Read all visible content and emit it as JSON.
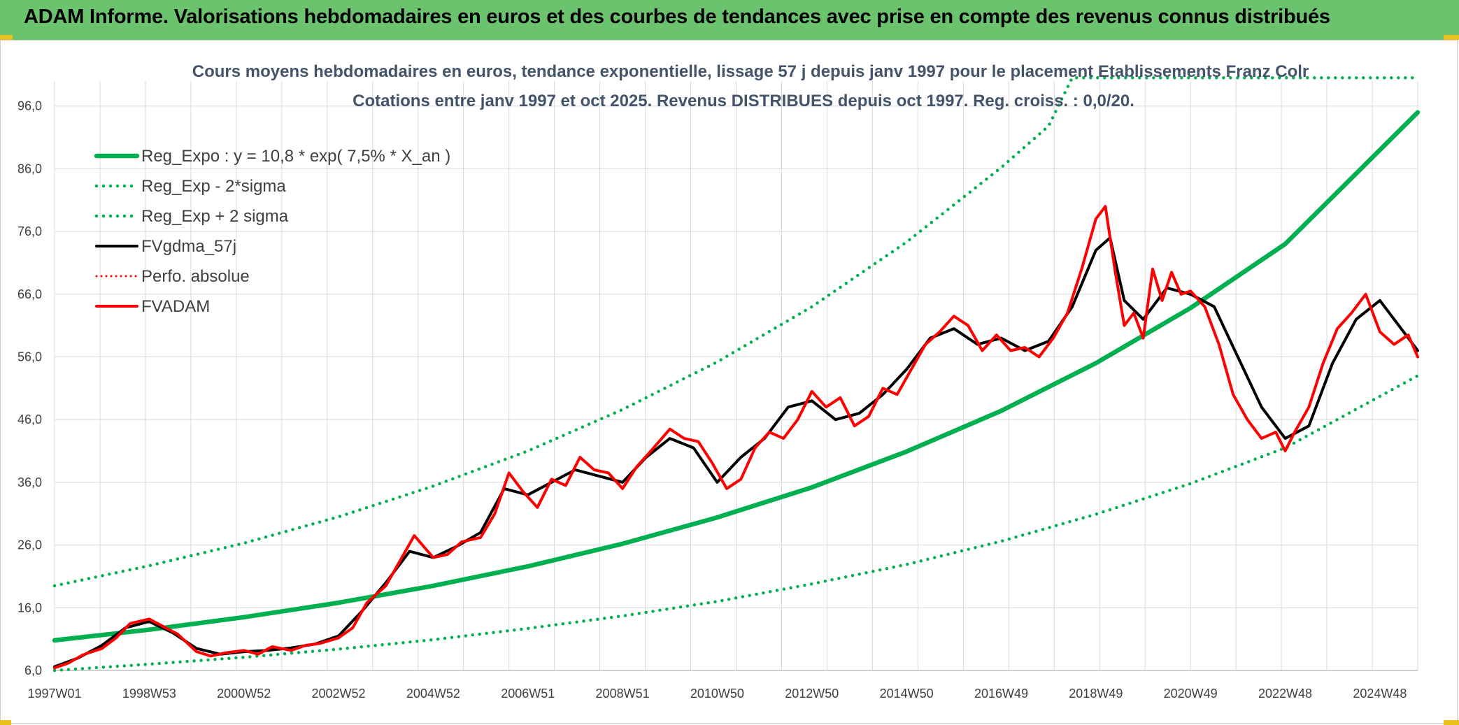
{
  "header": {
    "title": "ADAM Informe. Valorisations hebdomadaires en euros et des courbes de tendances avec prise en compte des revenus connus distribués"
  },
  "chart_data": {
    "type": "line",
    "title": "Cours moyens hebdomadaires en euros, tendance exponentielle, lissage 57 j depuis janv 1997 pour le placement Etablissements Franz Colr",
    "subtitle": "Cotations entre janv 1997 et oct 2025. Revenus DISTRIBUES depuis oct 1997. Reg. croiss. : 0,0/20.",
    "xlabel": "",
    "ylabel": "",
    "xlim": [
      1997.0,
      2025.8
    ],
    "ylim": [
      6.0,
      101.0
    ],
    "y_ticks": [
      "6,0",
      "16,0",
      "26,0",
      "36,0",
      "46,0",
      "56,0",
      "66,0",
      "76,0",
      "86,0",
      "96,0"
    ],
    "x_ticks": [
      "1997W01",
      "1998W53",
      "2000W52",
      "2002W52",
      "2004W52",
      "2006W51",
      "2008W51",
      "2010W50",
      "2012W50",
      "2014W50",
      "2016W49",
      "2018W49",
      "2020W49",
      "2022W48",
      "2024W48"
    ],
    "grid": true,
    "legend_position": "top-left",
    "series": [
      {
        "name": "Reg_Expo : y = 10,8 * exp( 7,5% *  X_an )",
        "style": "solid",
        "color": "#00b050",
        "x": [
          1997.0,
          1999.0,
          2001.0,
          2003.0,
          2005.0,
          2007.0,
          2009.0,
          2011.0,
          2013.0,
          2015.0,
          2017.0,
          2019.0,
          2021.0,
          2023.0,
          2025.8
        ],
        "values": [
          10.8,
          12.5,
          14.5,
          16.8,
          19.5,
          22.6,
          26.2,
          30.4,
          35.2,
          40.9,
          47.4,
          55.0,
          63.8,
          74.0,
          95.0
        ]
      },
      {
        "name": "Reg_Exp - 2*sigma",
        "style": "dotted",
        "color": "#00b050",
        "x": [
          1997.0,
          1999.0,
          2001.0,
          2003.0,
          2005.0,
          2007.0,
          2009.0,
          2011.0,
          2013.0,
          2015.0,
          2017.0,
          2019.0,
          2021.0,
          2023.0,
          2025.8
        ],
        "values": [
          6.0,
          7.0,
          8.1,
          9.4,
          10.9,
          12.7,
          14.7,
          17.0,
          19.8,
          22.9,
          26.6,
          30.9,
          35.8,
          41.5,
          53.0
        ]
      },
      {
        "name": "Reg_Exp + 2 sigma",
        "style": "dotted",
        "color": "#00b050",
        "x": [
          1997.0,
          1999.0,
          2001.0,
          2003.0,
          2005.0,
          2007.0,
          2009.0,
          2011.0,
          2013.0,
          2015.0,
          2017.0,
          2018.0,
          2018.5,
          2025.8
        ],
        "values": [
          19.5,
          22.7,
          26.3,
          30.5,
          35.4,
          41.0,
          47.6,
          55.2,
          64.0,
          74.3,
          86.2,
          92.8,
          100.5,
          100.5
        ]
      },
      {
        "name": "FVgdma_57j",
        "style": "solid",
        "color": "#000000",
        "x": [
          1997.0,
          1997.5,
          1998.0,
          1998.5,
          1999.0,
          1999.5,
          2000.0,
          2000.5,
          2001.0,
          2001.5,
          2002.0,
          2002.5,
          2003.0,
          2003.5,
          2004.0,
          2004.5,
          2005.0,
          2005.5,
          2006.0,
          2006.5,
          2007.0,
          2007.5,
          2008.0,
          2008.5,
          2009.0,
          2009.5,
          2010.0,
          2010.5,
          2011.0,
          2011.5,
          2012.0,
          2012.5,
          2013.0,
          2013.5,
          2014.0,
          2014.5,
          2015.0,
          2015.5,
          2016.0,
          2016.5,
          2017.0,
          2017.5,
          2018.0,
          2018.5,
          2019.0,
          2019.3,
          2019.6,
          2020.0,
          2020.5,
          2021.0,
          2021.5,
          2022.0,
          2022.5,
          2023.0,
          2023.5,
          2024.0,
          2024.5,
          2025.0,
          2025.5,
          2025.8
        ],
        "values": [
          6.6,
          8.0,
          10.0,
          12.8,
          13.8,
          12.0,
          9.5,
          8.6,
          9.0,
          9.2,
          9.6,
          10.2,
          11.5,
          15.5,
          20.0,
          25.0,
          24.0,
          25.8,
          28.0,
          35.0,
          34.0,
          36.0,
          38.0,
          37.0,
          36.0,
          40.0,
          43.0,
          41.5,
          36.0,
          40.0,
          43.0,
          48.0,
          49.0,
          46.0,
          47.0,
          50.0,
          54.0,
          59.0,
          60.5,
          58.0,
          59.0,
          57.0,
          58.5,
          64.0,
          73.0,
          75.0,
          65.0,
          62.0,
          67.0,
          66.0,
          64.0,
          56.0,
          48.0,
          43.0,
          45.0,
          55.0,
          62.0,
          65.0,
          60.0,
          57.0
        ]
      },
      {
        "name": "Perfo. absolue",
        "style": "dotted",
        "color": "#ff0000",
        "x": [],
        "values": []
      },
      {
        "name": "FVADAM",
        "style": "solid",
        "color": "#ff0000",
        "x": [
          1997.0,
          1997.3,
          1997.6,
          1998.0,
          1998.3,
          1998.6,
          1999.0,
          1999.3,
          1999.6,
          2000.0,
          2000.3,
          2000.6,
          2001.0,
          2001.3,
          2001.6,
          2002.0,
          2002.3,
          2002.6,
          2003.0,
          2003.3,
          2003.6,
          2004.0,
          2004.3,
          2004.6,
          2005.0,
          2005.3,
          2005.6,
          2006.0,
          2006.3,
          2006.6,
          2006.9,
          2007.2,
          2007.5,
          2007.8,
          2008.1,
          2008.4,
          2008.7,
          2009.0,
          2009.3,
          2009.6,
          2010.0,
          2010.3,
          2010.6,
          2010.9,
          2011.2,
          2011.5,
          2011.8,
          2012.1,
          2012.4,
          2012.7,
          2013.0,
          2013.3,
          2013.6,
          2013.9,
          2014.2,
          2014.5,
          2014.8,
          2015.1,
          2015.4,
          2015.7,
          2016.0,
          2016.3,
          2016.6,
          2016.9,
          2017.2,
          2017.5,
          2017.8,
          2018.1,
          2018.4,
          2018.7,
          2019.0,
          2019.2,
          2019.4,
          2019.6,
          2019.8,
          2020.0,
          2020.2,
          2020.4,
          2020.6,
          2020.8,
          2021.0,
          2021.3,
          2021.6,
          2021.9,
          2022.2,
          2022.5,
          2022.8,
          2023.0,
          2023.2,
          2023.5,
          2023.8,
          2024.1,
          2024.4,
          2024.7,
          2025.0,
          2025.3,
          2025.6,
          2025.8
        ],
        "values": [
          6.4,
          7.2,
          8.5,
          9.5,
          11.2,
          13.5,
          14.2,
          13.0,
          11.8,
          9.0,
          8.3,
          8.8,
          9.2,
          8.6,
          9.8,
          9.2,
          10.0,
          10.3,
          11.2,
          12.8,
          16.8,
          19.5,
          23.5,
          27.5,
          24.0,
          24.5,
          26.5,
          27.2,
          31.0,
          37.5,
          34.5,
          32.0,
          36.5,
          35.5,
          40.0,
          38.0,
          37.5,
          35.0,
          38.5,
          41.0,
          44.5,
          43.0,
          42.5,
          39.0,
          35.0,
          36.5,
          41.5,
          44.0,
          43.0,
          46.0,
          50.5,
          48.0,
          49.5,
          45.0,
          46.5,
          51.0,
          50.0,
          54.0,
          58.0,
          60.0,
          62.5,
          61.0,
          57.0,
          59.5,
          57.0,
          57.5,
          56.0,
          59.0,
          63.0,
          70.0,
          78.0,
          80.0,
          70.0,
          61.0,
          63.0,
          59.0,
          70.0,
          65.0,
          69.5,
          66.0,
          66.5,
          64.0,
          58.0,
          50.0,
          46.0,
          43.0,
          44.0,
          41.0,
          44.0,
          48.0,
          55.0,
          60.5,
          63.0,
          66.0,
          60.0,
          58.0,
          59.5,
          56.0
        ]
      }
    ]
  }
}
